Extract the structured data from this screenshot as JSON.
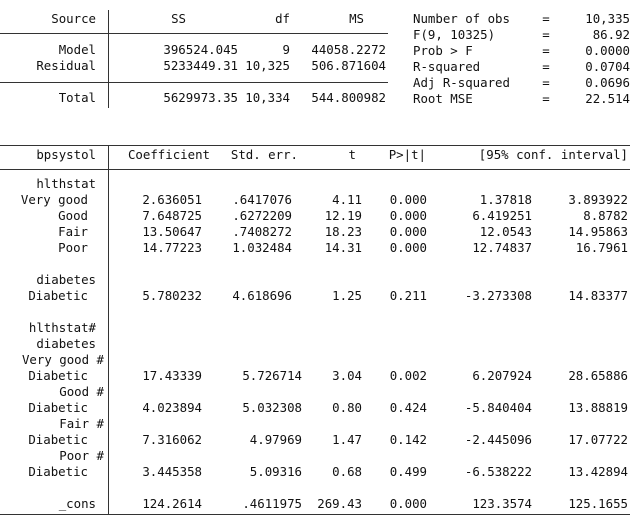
{
  "anova": {
    "headers": {
      "source": "Source",
      "ss": "SS",
      "df": "df",
      "ms": "MS"
    },
    "rows": [
      {
        "source": "Model",
        "ss": "396524.045",
        "df": "9",
        "ms": "44058.2272"
      },
      {
        "source": "Residual",
        "ss": "5233449.31",
        "df": "10,325",
        "ms": "506.871604"
      }
    ],
    "total": {
      "source": "Total",
      "ss": "5629973.35",
      "df": "10,334",
      "ms": "544.800982"
    }
  },
  "fit_stats": [
    {
      "label": "Number of obs",
      "eq": "=",
      "value": "10,335"
    },
    {
      "label": "F(9, 10325)",
      "eq": "=",
      "value": "86.92"
    },
    {
      "label": "Prob > F",
      "eq": "=",
      "value": "0.0000"
    },
    {
      "label": "R-squared",
      "eq": "=",
      "value": "0.0704"
    },
    {
      "label": "Adj R-squared",
      "eq": "=",
      "value": "0.0696"
    },
    {
      "label": "Root MSE",
      "eq": "=",
      "value": "22.514"
    }
  ],
  "coef_table": {
    "headers": {
      "var": "bpsystol",
      "coef": "Coefficient",
      "se": "Std. err.",
      "t": "t",
      "p": "P>|t|",
      "ci": "[95% conf. interval]"
    },
    "groups": {
      "hlthstat": "hlthstat",
      "diabetes": "diabetes",
      "inter1": "hlthstat#",
      "inter2": "diabetes"
    },
    "rows": {
      "verygood": {
        "label": "Very good",
        "coef": "2.636051",
        "se": ".6417076",
        "t": "4.11",
        "p": "0.000",
        "lo": "1.37818",
        "hi": "3.893922"
      },
      "good": {
        "label": "Good",
        "coef": "7.648725",
        "se": ".6272209",
        "t": "12.19",
        "p": "0.000",
        "lo": "6.419251",
        "hi": "8.8782"
      },
      "fair": {
        "label": "Fair",
        "coef": "13.50647",
        "se": ".7408272",
        "t": "18.23",
        "p": "0.000",
        "lo": "12.0543",
        "hi": "14.95863"
      },
      "poor": {
        "label": "Poor",
        "coef": "14.77223",
        "se": "1.032484",
        "t": "14.31",
        "p": "0.000",
        "lo": "12.74837",
        "hi": "16.7961"
      },
      "diabetic": {
        "label": "Diabetic",
        "coef": "5.780232",
        "se": "4.618696",
        "t": "1.25",
        "p": "0.211",
        "lo": "-3.273308",
        "hi": "14.83377"
      },
      "vg_d": {
        "label1": "Very good #",
        "label2": "Diabetic",
        "coef": "17.43339",
        "se": "5.726714",
        "t": "3.04",
        "p": "0.002",
        "lo": "6.207924",
        "hi": "28.65886"
      },
      "g_d": {
        "label1": "Good #",
        "label2": "Diabetic",
        "coef": "4.023894",
        "se": "5.032308",
        "t": "0.80",
        "p": "0.424",
        "lo": "-5.840404",
        "hi": "13.88819"
      },
      "f_d": {
        "label1": "Fair #",
        "label2": "Diabetic",
        "coef": "7.316062",
        "se": "4.97969",
        "t": "1.47",
        "p": "0.142",
        "lo": "-2.445096",
        "hi": "17.07722"
      },
      "p_d": {
        "label1": "Poor #",
        "label2": "Diabetic",
        "coef": "3.445358",
        "se": "5.09316",
        "t": "0.68",
        "p": "0.499",
        "lo": "-6.538222",
        "hi": "13.42894"
      },
      "cons": {
        "label": "_cons",
        "coef": "124.2614",
        "se": ".4611975",
        "t": "269.43",
        "p": "0.000",
        "lo": "123.3574",
        "hi": "125.1655"
      }
    }
  }
}
